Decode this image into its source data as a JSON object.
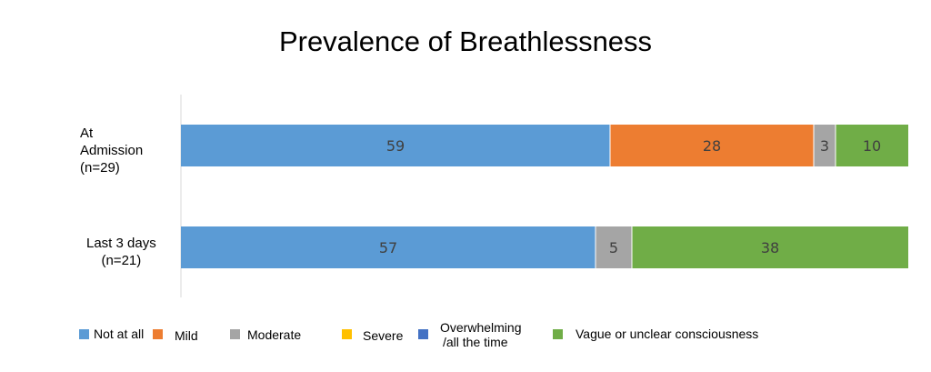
{
  "chart_data": {
    "type": "bar",
    "orientation": "horizontal",
    "stacked": true,
    "title": "Prevalence of Breathlessness",
    "xlim": [
      0,
      100
    ],
    "grid": false,
    "legend_position": "bottom",
    "categories": [
      "At Admission (n=29)",
      "Last 3 days (n=21)"
    ],
    "category_lines": [
      [
        "At",
        "Admission",
        "(n=29)"
      ],
      [
        "Last 3 days",
        "(n=21)"
      ]
    ],
    "series": [
      {
        "name": "Not at all",
        "color": "#5B9BD5",
        "values": [
          59,
          57
        ]
      },
      {
        "name": "Mild",
        "color": "#ED7D31",
        "values": [
          28,
          0
        ]
      },
      {
        "name": "Moderate",
        "color": "#A5A5A5",
        "values": [
          3,
          5
        ]
      },
      {
        "name": "Severe",
        "color": "#FFC000",
        "values": [
          0,
          0
        ]
      },
      {
        "name": "Overwhelming /all the time",
        "color": "#4472C4",
        "values": [
          0,
          0
        ]
      },
      {
        "name": "Vague or unclear consciousness",
        "color": "#70AD47",
        "values": [
          10,
          38
        ]
      }
    ],
    "legend_lines": {
      "Overwhelming /all the time": [
        "Overwhelming",
        "/all the time"
      ]
    }
  }
}
